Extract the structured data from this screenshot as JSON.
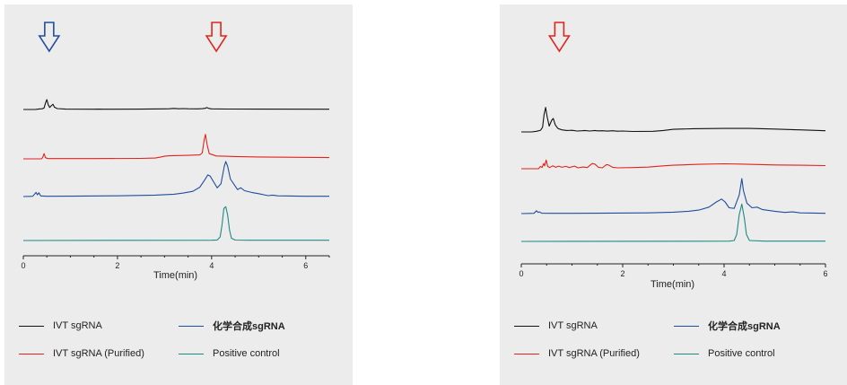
{
  "colors": {
    "ivt": "#111111",
    "ivt_purified": "#e2231a",
    "chemical": "#1f4e9c",
    "positive": "#1e8a86"
  },
  "chart_data": [
    {
      "type": "line",
      "title": "",
      "xlabel": "Time(min)",
      "ylabel": "",
      "xlim": [
        0,
        6.5
      ],
      "x_ticks": [
        "0",
        "2",
        "4",
        "6"
      ],
      "grid": false,
      "legend_position": "bottom",
      "annotations": [
        {
          "kind": "arrow-down",
          "x": 0.55,
          "color": "#1f4e9c"
        },
        {
          "kind": "arrow-down",
          "x": 4.1,
          "color": "#e2231a"
        }
      ],
      "series": [
        {
          "name": "IVT sgRNA",
          "color": "#111111",
          "baseline": 0,
          "points": [
            [
              0,
              0
            ],
            [
              0.25,
              0
            ],
            [
              0.3,
              0.02
            ],
            [
              0.36,
              0.05
            ],
            [
              0.4,
              0.06
            ],
            [
              0.44,
              0.12
            ],
            [
              0.47,
              0.55
            ],
            [
              0.5,
              0.85
            ],
            [
              0.53,
              0.4
            ],
            [
              0.56,
              0.18
            ],
            [
              0.6,
              0.35
            ],
            [
              0.63,
              0.45
            ],
            [
              0.66,
              0.2
            ],
            [
              0.72,
              0.08
            ],
            [
              0.9,
              0.03
            ],
            [
              1.5,
              0.02
            ],
            [
              1.6,
              0.03
            ],
            [
              1.7,
              0.02
            ],
            [
              2.5,
              0.03
            ],
            [
              3.0,
              0.05
            ],
            [
              3.1,
              0.06
            ],
            [
              3.2,
              0.09
            ],
            [
              3.3,
              0.06
            ],
            [
              3.4,
              0.08
            ],
            [
              3.5,
              0.06
            ],
            [
              3.7,
              0.05
            ],
            [
              3.8,
              0.07
            ],
            [
              3.86,
              0.1
            ],
            [
              3.9,
              0.16
            ],
            [
              3.94,
              0.09
            ],
            [
              4.0,
              0.05
            ],
            [
              4.3,
              0.04
            ],
            [
              5.0,
              0.03
            ],
            [
              6.5,
              0.02
            ]
          ]
        },
        {
          "name": "IVT sgRNA (Purified)",
          "color": "#e2231a",
          "baseline": 1,
          "points": [
            [
              0,
              0
            ],
            [
              0.38,
              0
            ],
            [
              0.41,
              0.1
            ],
            [
              0.44,
              0.45
            ],
            [
              0.47,
              0.1
            ],
            [
              0.52,
              0.02
            ],
            [
              1.5,
              0.02
            ],
            [
              2.5,
              0.04
            ],
            [
              2.8,
              0.07
            ],
            [
              2.9,
              0.14
            ],
            [
              3.0,
              0.22
            ],
            [
              3.1,
              0.26
            ],
            [
              3.5,
              0.3
            ],
            [
              3.75,
              0.34
            ],
            [
              3.8,
              0.5
            ],
            [
              3.84,
              1.6
            ],
            [
              3.87,
              2.1
            ],
            [
              3.9,
              1.3
            ],
            [
              3.95,
              0.45
            ],
            [
              4.1,
              0.25
            ],
            [
              4.5,
              0.2
            ],
            [
              5.0,
              0.16
            ],
            [
              6.5,
              0.11
            ]
          ]
        },
        {
          "name": "化学合成sgRNA",
          "color": "#1f4e9c",
          "baseline": 2,
          "points": [
            [
              0,
              0
            ],
            [
              0.2,
              0.02
            ],
            [
              0.27,
              0.35
            ],
            [
              0.3,
              0.15
            ],
            [
              0.33,
              0.32
            ],
            [
              0.37,
              0.05
            ],
            [
              0.5,
              0.02
            ],
            [
              1.0,
              0.03
            ],
            [
              2.0,
              0.06
            ],
            [
              2.8,
              0.12
            ],
            [
              3.2,
              0.2
            ],
            [
              3.4,
              0.3
            ],
            [
              3.6,
              0.45
            ],
            [
              3.75,
              0.8
            ],
            [
              3.85,
              1.4
            ],
            [
              3.92,
              1.85
            ],
            [
              3.97,
              1.75
            ],
            [
              4.05,
              1.2
            ],
            [
              4.12,
              0.75
            ],
            [
              4.2,
              1.1
            ],
            [
              4.27,
              2.6
            ],
            [
              4.3,
              3.0
            ],
            [
              4.34,
              2.6
            ],
            [
              4.4,
              1.5
            ],
            [
              4.5,
              0.9
            ],
            [
              4.55,
              0.6
            ],
            [
              4.62,
              0.75
            ],
            [
              4.7,
              0.5
            ],
            [
              4.85,
              0.35
            ],
            [
              5.0,
              0.25
            ],
            [
              5.2,
              0.08
            ],
            [
              5.3,
              0.12
            ],
            [
              5.4,
              0.06
            ],
            [
              6.0,
              0.02
            ],
            [
              6.5,
              0.02
            ]
          ]
        },
        {
          "name": "Positive control",
          "color": "#1e8a86",
          "baseline": 3,
          "points": [
            [
              0,
              0
            ],
            [
              4.0,
              0.02
            ],
            [
              4.12,
              0.05
            ],
            [
              4.18,
              0.3
            ],
            [
              4.22,
              1.3
            ],
            [
              4.26,
              2.75
            ],
            [
              4.3,
              2.9
            ],
            [
              4.34,
              2.2
            ],
            [
              4.38,
              0.9
            ],
            [
              4.42,
              0.2
            ],
            [
              4.5,
              0.04
            ],
            [
              4.8,
              0.02
            ],
            [
              6.5,
              0.02
            ]
          ]
        }
      ]
    },
    {
      "type": "line",
      "title": "",
      "xlabel": "Time(min)",
      "ylabel": "",
      "xlim": [
        0,
        6
      ],
      "x_ticks": [
        "0",
        "2",
        "4",
        "6"
      ],
      "grid": false,
      "legend_position": "bottom",
      "annotations": [
        {
          "kind": "arrow-down",
          "x": 0.75,
          "color": "#e2231a"
        }
      ],
      "series": [
        {
          "name": "IVT sgRNA",
          "color": "#111111",
          "baseline": 0,
          "points": [
            [
              0,
              0
            ],
            [
              0.2,
              0
            ],
            [
              0.3,
              0.05
            ],
            [
              0.38,
              0.15
            ],
            [
              0.42,
              0.4
            ],
            [
              0.45,
              1.5
            ],
            [
              0.48,
              2.1
            ],
            [
              0.51,
              1.3
            ],
            [
              0.55,
              0.5
            ],
            [
              0.6,
              1.0
            ],
            [
              0.63,
              1.15
            ],
            [
              0.67,
              0.6
            ],
            [
              0.72,
              0.3
            ],
            [
              0.8,
              0.18
            ],
            [
              0.9,
              0.12
            ],
            [
              1.0,
              0.14
            ],
            [
              1.1,
              0.08
            ],
            [
              1.2,
              0.1
            ],
            [
              1.25,
              0.12
            ],
            [
              1.35,
              0.08
            ],
            [
              1.45,
              0.12
            ],
            [
              1.5,
              0.09
            ],
            [
              1.6,
              0.1
            ],
            [
              1.7,
              0.07
            ],
            [
              1.8,
              0.1
            ],
            [
              1.9,
              0.06
            ],
            [
              2.0,
              0.08
            ],
            [
              2.2,
              0.04
            ],
            [
              2.6,
              0.05
            ],
            [
              2.8,
              0.12
            ],
            [
              3.0,
              0.22
            ],
            [
              3.4,
              0.28
            ],
            [
              4.0,
              0.3
            ],
            [
              4.5,
              0.3
            ],
            [
              5.0,
              0.25
            ],
            [
              5.5,
              0.18
            ],
            [
              6.0,
              0.1
            ]
          ]
        },
        {
          "name": "IVT sgRNA (Purified)",
          "color": "#e2231a",
          "baseline": 1,
          "points": [
            [
              0,
              0
            ],
            [
              0.34,
              0
            ],
            [
              0.38,
              0.2
            ],
            [
              0.41,
              0.1
            ],
            [
              0.44,
              0.45
            ],
            [
              0.46,
              0.25
            ],
            [
              0.49,
              0.75
            ],
            [
              0.52,
              0.2
            ],
            [
              0.56,
              0.1
            ],
            [
              0.62,
              0.25
            ],
            [
              0.68,
              0.12
            ],
            [
              0.74,
              0.22
            ],
            [
              0.8,
              0.12
            ],
            [
              0.88,
              0.2
            ],
            [
              0.95,
              0.1
            ],
            [
              1.05,
              0.22
            ],
            [
              1.12,
              0.08
            ],
            [
              1.22,
              0.15
            ],
            [
              1.3,
              0.1
            ],
            [
              1.4,
              0.45
            ],
            [
              1.45,
              0.4
            ],
            [
              1.52,
              0.12
            ],
            [
              1.6,
              0.08
            ],
            [
              1.68,
              0.35
            ],
            [
              1.72,
              0.32
            ],
            [
              1.8,
              0.12
            ],
            [
              1.9,
              0.08
            ],
            [
              2.2,
              0.1
            ],
            [
              2.5,
              0.14
            ],
            [
              2.8,
              0.25
            ],
            [
              3.0,
              0.3
            ],
            [
              3.5,
              0.38
            ],
            [
              4.0,
              0.42
            ],
            [
              4.3,
              0.4
            ],
            [
              5.0,
              0.32
            ],
            [
              5.5,
              0.3
            ],
            [
              6.0,
              0.27
            ]
          ]
        },
        {
          "name": "化学合成sgRNA",
          "color": "#1f4e9c",
          "baseline": 2,
          "points": [
            [
              0,
              0
            ],
            [
              0.25,
              0.02
            ],
            [
              0.3,
              0.25
            ],
            [
              0.33,
              0.1
            ],
            [
              0.36,
              0.15
            ],
            [
              0.4,
              0.03
            ],
            [
              0.6,
              0.02
            ],
            [
              1.5,
              0.03
            ],
            [
              2.5,
              0.06
            ],
            [
              3.0,
              0.12
            ],
            [
              3.3,
              0.2
            ],
            [
              3.5,
              0.3
            ],
            [
              3.7,
              0.55
            ],
            [
              3.85,
              1.0
            ],
            [
              3.95,
              1.25
            ],
            [
              4.02,
              1.0
            ],
            [
              4.1,
              0.5
            ],
            [
              4.2,
              0.45
            ],
            [
              4.3,
              1.6
            ],
            [
              4.35,
              3.0
            ],
            [
              4.38,
              2.0
            ],
            [
              4.45,
              0.9
            ],
            [
              4.55,
              0.5
            ],
            [
              4.65,
              0.55
            ],
            [
              4.75,
              0.35
            ],
            [
              5.0,
              0.2
            ],
            [
              5.2,
              0.1
            ],
            [
              5.35,
              0.15
            ],
            [
              5.5,
              0.06
            ],
            [
              6.0,
              0.02
            ]
          ]
        },
        {
          "name": "Positive control",
          "color": "#1e8a86",
          "baseline": 3,
          "points": [
            [
              0,
              0
            ],
            [
              4.1,
              0.02
            ],
            [
              4.2,
              0.08
            ],
            [
              4.25,
              0.6
            ],
            [
              4.3,
              2.3
            ],
            [
              4.35,
              3.2
            ],
            [
              4.4,
              2.0
            ],
            [
              4.44,
              0.6
            ],
            [
              4.5,
              0.08
            ],
            [
              4.8,
              0.02
            ],
            [
              6.0,
              0.02
            ]
          ]
        }
      ]
    }
  ]
}
